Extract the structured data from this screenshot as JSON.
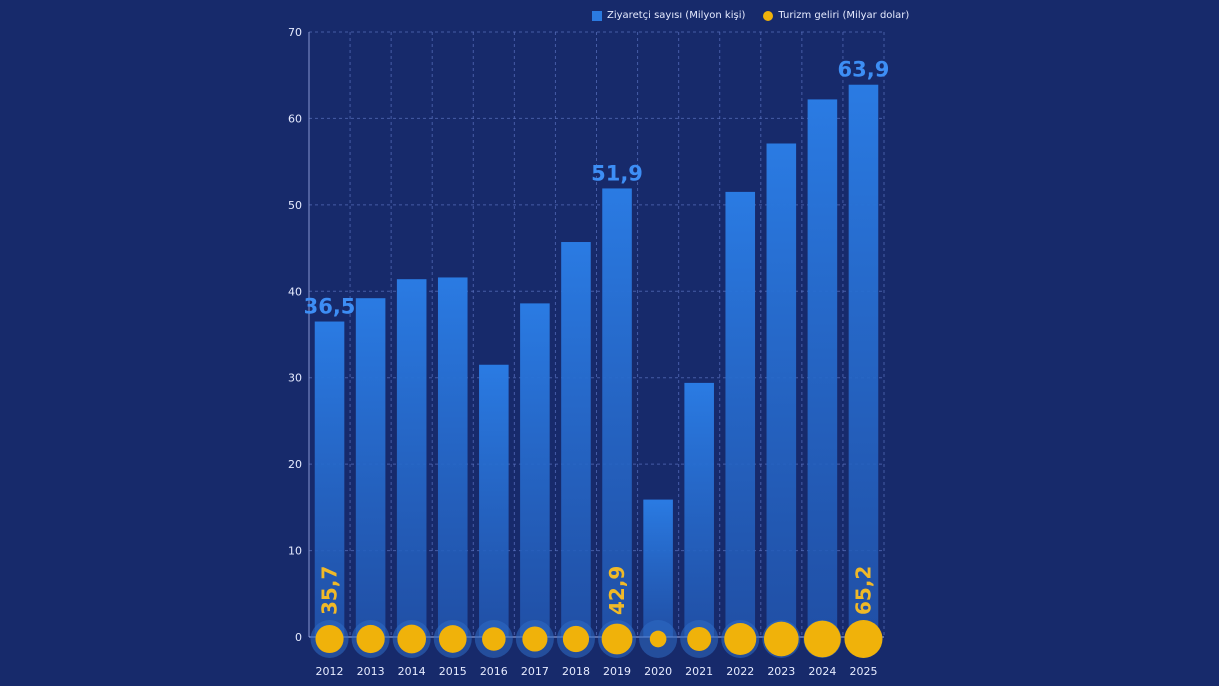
{
  "chart_data": {
    "type": "bar",
    "title": "",
    "xlabel": "",
    "ylabel": "",
    "ylim": [
      0,
      70
    ],
    "yticks": [
      0,
      10,
      20,
      30,
      40,
      50,
      60,
      70
    ],
    "grid": true,
    "legend_position": "top-right",
    "categories": [
      "2012",
      "2013",
      "2014",
      "2015",
      "2016",
      "2017",
      "2018",
      "2019",
      "2020",
      "2021",
      "2022",
      "2023",
      "2024",
      "2025"
    ],
    "series": [
      {
        "name": "Ziyaretçi sayısı (Milyon kişi)",
        "type": "bar",
        "color": "#2b7ae0",
        "values": [
          36.5,
          39.2,
          41.4,
          41.6,
          31.5,
          38.6,
          45.7,
          51.9,
          15.9,
          29.4,
          51.5,
          57.1,
          62.2,
          63.9
        ],
        "labels": {
          "2012": "36,5",
          "2019": "51,9",
          "2025": "63,9"
        }
      },
      {
        "name": "Turizm geliri (Milyar dolar)",
        "type": "bubble",
        "color": "#f0b20a",
        "values": [
          35.7,
          36.0,
          37.0,
          34.5,
          25.0,
          28.5,
          31.0,
          42.9,
          12.5,
          26.0,
          46.3,
          54.3,
          61.1,
          65.2
        ],
        "labels": {
          "2012": "35,7",
          "2019": "42,9",
          "2025": "65,2"
        }
      }
    ]
  },
  "legend": {
    "bars_label": "Ziyaretçi sayısı (Milyon kişi)",
    "bubbles_label": "Turizm geliri (Milyar dolar)"
  }
}
